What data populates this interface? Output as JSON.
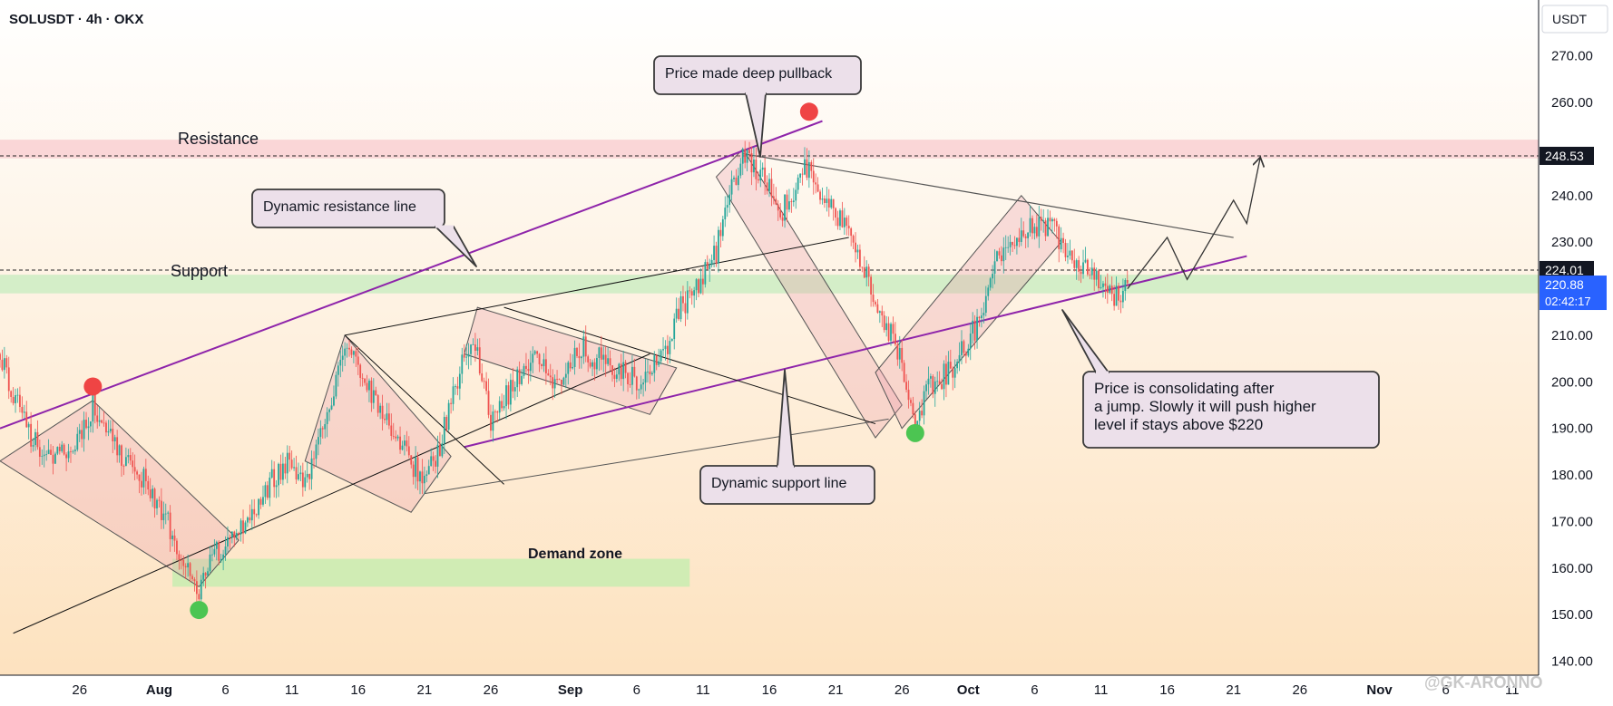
{
  "header": {
    "title": "SOLUSDT · 4h · OKX"
  },
  "currency": "USDT",
  "colors": {
    "up": "#26a69a",
    "down": "#ef5350",
    "channel": "#8e24aa",
    "resistance_zone": "#f8c8cc",
    "support_zone": "#c9ecc0",
    "demand_zone": "#c8ecb0",
    "bubble_fill": "#ece0ea",
    "bubble_stroke": "#3a3a3a",
    "marker_red": "#ef4444",
    "marker_green": "#4cc552",
    "current_price_bg": "#2962ff",
    "level_label_bg": "#131722"
  },
  "chart_data": {
    "type": "candlestick",
    "y_axis": {
      "ylim": [
        137,
        282
      ],
      "ticks": [
        140,
        150,
        160,
        170,
        180,
        190,
        200,
        210,
        220,
        230,
        240,
        250,
        260,
        270
      ],
      "tick_labels": [
        "140.00",
        "150.00",
        "160.00",
        "170.00",
        "180.00",
        "190.00",
        "200.00",
        "210.00",
        "",
        "230.00",
        "240.00",
        "",
        "260.00",
        "270.00"
      ]
    },
    "x_axis": {
      "start": "2024-07-20",
      "end": "2024-11-13",
      "tick_dates": [
        "2024-07-26",
        "2024-08-01",
        "2024-08-06",
        "2024-08-11",
        "2024-08-16",
        "2024-08-21",
        "2024-08-26",
        "2024-09-01",
        "2024-09-06",
        "2024-09-11",
        "2024-09-16",
        "2024-09-21",
        "2024-09-26",
        "2024-10-01",
        "2024-10-06",
        "2024-10-11",
        "2024-10-16",
        "2024-10-21",
        "2024-10-26",
        "2024-11-01",
        "2024-11-06",
        "2024-11-11"
      ],
      "tick_labels": [
        "26",
        "Aug",
        "6",
        "11",
        "16",
        "21",
        "26",
        "Sep",
        "6",
        "11",
        "16",
        "21",
        "26",
        "Oct",
        "6",
        "11",
        "16",
        "21",
        "26",
        "Nov",
        "6",
        "11"
      ]
    },
    "price_path": [
      [
        "2024-07-20",
        206
      ],
      [
        "2024-07-22",
        190
      ],
      [
        "2024-07-24",
        183
      ],
      [
        "2024-07-26",
        187
      ],
      [
        "2024-07-27",
        195
      ],
      [
        "2024-07-29",
        185
      ],
      [
        "2024-07-31",
        178
      ],
      [
        "2024-08-02",
        168
      ],
      [
        "2024-08-03",
        160
      ],
      [
        "2024-08-04",
        156
      ],
      [
        "2024-08-05",
        162
      ],
      [
        "2024-08-07",
        168
      ],
      [
        "2024-08-09",
        177
      ],
      [
        "2024-08-11",
        184
      ],
      [
        "2024-08-12",
        177
      ],
      [
        "2024-08-14",
        195
      ],
      [
        "2024-08-15",
        208
      ],
      [
        "2024-08-17",
        198
      ],
      [
        "2024-08-19",
        188
      ],
      [
        "2024-08-21",
        178
      ],
      [
        "2024-08-22",
        185
      ],
      [
        "2024-08-24",
        205
      ],
      [
        "2024-08-25",
        207
      ],
      [
        "2024-08-26",
        190
      ],
      [
        "2024-08-27",
        196
      ],
      [
        "2024-08-29",
        205
      ],
      [
        "2024-08-31",
        200
      ],
      [
        "2024-09-02",
        207
      ],
      [
        "2024-09-04",
        203
      ],
      [
        "2024-09-06",
        200
      ],
      [
        "2024-09-08",
        205
      ],
      [
        "2024-09-09",
        215
      ],
      [
        "2024-09-11",
        222
      ],
      [
        "2024-09-12",
        228
      ],
      [
        "2024-09-13",
        240
      ],
      [
        "2024-09-14",
        248
      ],
      [
        "2024-09-16",
        243
      ],
      [
        "2024-09-17",
        237
      ],
      [
        "2024-09-19",
        247
      ],
      [
        "2024-09-20",
        240
      ],
      [
        "2024-09-22",
        232
      ],
      [
        "2024-09-24",
        218
      ],
      [
        "2024-09-26",
        204
      ],
      [
        "2024-09-27",
        193
      ],
      [
        "2024-09-28",
        198
      ],
      [
        "2024-09-30",
        204
      ],
      [
        "2024-10-02",
        214
      ],
      [
        "2024-10-03",
        225
      ],
      [
        "2024-10-05",
        233
      ],
      [
        "2024-10-07",
        234
      ],
      [
        "2024-10-09",
        227
      ],
      [
        "2024-10-11",
        222
      ],
      [
        "2024-10-12",
        218
      ],
      [
        "2024-10-13",
        221
      ]
    ],
    "levels": [
      {
        "name": "Resistance",
        "value": 248.53,
        "zone": [
          248,
          252
        ]
      },
      {
        "name": "Support",
        "value": 224.01,
        "zone": [
          219,
          223
        ]
      }
    ],
    "current_price": {
      "value": "220.88",
      "countdown": "02:42:17"
    },
    "demand_zone": {
      "label": "Demand zone",
      "x_start": "2024-08-02",
      "x_end": "2024-09-10",
      "y_range": [
        156,
        162
      ]
    },
    "projection": [
      [
        "2024-10-13",
        220
      ],
      [
        "2024-10-16",
        231
      ],
      [
        "2024-10-17.5",
        222
      ],
      [
        "2024-10-21",
        239
      ],
      [
        "2024-10-22",
        234
      ],
      [
        "2024-10-23",
        248
      ]
    ],
    "annotations": {
      "top_note": "Price made deep pullback",
      "dynamic_resistance": "Dynamic resistance line",
      "dynamic_support": "Dynamic support line",
      "consolidation_lines": [
        "Price is consolidating after",
        "a jump. Slowly it will push higher",
        "level if stays above $220"
      ],
      "resistance_label": "Resistance",
      "support_label": "Support",
      "demand_label": "Demand zone"
    },
    "watermark": "@GK-ARONNO"
  }
}
